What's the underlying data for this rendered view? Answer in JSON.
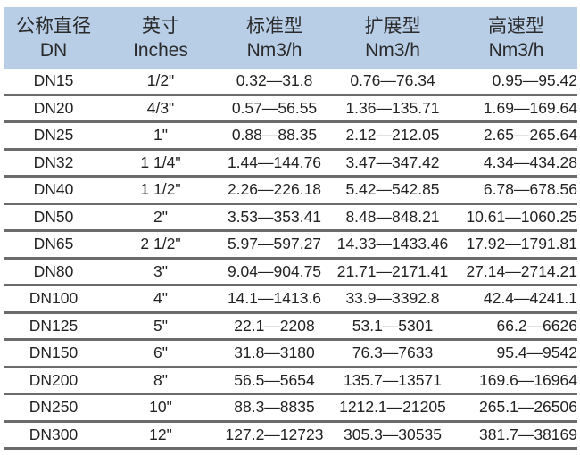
{
  "header": [
    {
      "zh": "公称直径",
      "en": "DN"
    },
    {
      "zh": "英寸",
      "en": "Inches"
    },
    {
      "zh": "标准型",
      "en": "Nm3/h"
    },
    {
      "zh": "扩展型",
      "en": "Nm3/h"
    },
    {
      "zh": "高速型",
      "en": "Nm3/h"
    }
  ],
  "rows": [
    [
      "DN15",
      "1/2\"",
      "0.32—31.8",
      "0.76—76.34",
      "0.95—95.42"
    ],
    [
      "DN20",
      "4/3\"",
      "0.57—56.55",
      "1.36—135.71",
      "1.69—169.64"
    ],
    [
      "DN25",
      "1\"",
      "0.88—88.35",
      "2.12—212.05",
      "2.65—265.64"
    ],
    [
      "DN32",
      "1 1/4\"",
      "1.44—144.76",
      "3.47—347.42",
      "4.34—434.28"
    ],
    [
      "DN40",
      "1 1/2\"",
      "2.26—226.18",
      "5.42—542.85",
      "6.78—678.56"
    ],
    [
      "DN50",
      "2\"",
      "3.53—353.41",
      "8.48—848.21",
      "10.61—1060.25"
    ],
    [
      "DN65",
      "2 1/2\"",
      "5.97—597.27",
      "14.33—1433.46",
      "17.92—1791.81"
    ],
    [
      "DN80",
      "3\"",
      "9.04—904.75",
      "21.71—2171.41",
      "27.14—2714.21"
    ],
    [
      "DN100",
      "4\"",
      "14.1—1413.6",
      "33.9—3392.8",
      "42.4—4241.1"
    ],
    [
      "DN125",
      "5\"",
      "22.1—2208",
      "53.1—5301",
      "66.2—6626"
    ],
    [
      "DN150",
      "6\"",
      "31.8—3180",
      "76.3—7633",
      "95.4—9542"
    ],
    [
      "DN200",
      "8\"",
      "56.5—5654",
      "135.7—13571",
      "169.6—16964"
    ],
    [
      "DN250",
      "10\"",
      "88.3—8835",
      "1212.1—21205",
      "265.1—26506"
    ],
    [
      "DN300",
      "12\"",
      "127.2—12723",
      "305.3—30535",
      "381.7—38169"
    ]
  ]
}
